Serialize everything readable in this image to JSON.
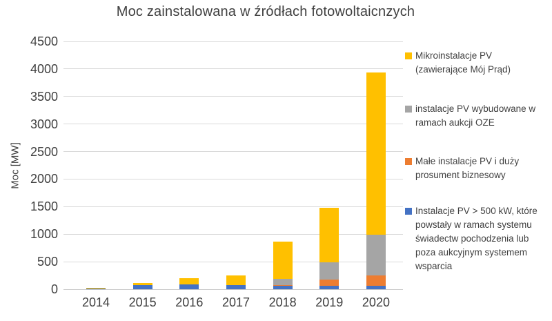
{
  "chart_data": {
    "type": "bar",
    "stacked": true,
    "title": "Moc zainstalowana w źródłach fotowoltaicnzych",
    "xlabel": "",
    "ylabel": "Moc [MW]",
    "categories": [
      "2014",
      "2015",
      "2016",
      "2017",
      "2018",
      "2019",
      "2020"
    ],
    "series": [
      {
        "name": "Instalacje PV > 500 kW, które powstały w ramach systemu świadectw pochodzenia lub poza aukcyjnym systemem wsparcia",
        "color": "#4472C4",
        "values": [
          10,
          75,
          85,
          80,
          60,
          60,
          60
        ]
      },
      {
        "name": "Małe instalacje PV i duży prosument biznesowy",
        "color": "#ED7D31",
        "values": [
          0,
          0,
          0,
          0,
          15,
          110,
          195
        ]
      },
      {
        "name": "instalacje PV wybudowane w ramach aukcji OZE",
        "color": "#A5A5A5",
        "values": [
          0,
          0,
          0,
          0,
          115,
          320,
          730
        ]
      },
      {
        "name": "Mikroinstalacje PV (zawierające Mój Prąd)",
        "color": "#FFC000",
        "values": [
          15,
          35,
          115,
          175,
          670,
          990,
          2955
        ]
      }
    ],
    "totals": [
      25,
      110,
      200,
      255,
      860,
      1480,
      3940
    ],
    "ylim": [
      0,
      4500
    ],
    "ytick_step": 500,
    "yticks": [
      0,
      500,
      1000,
      1500,
      2000,
      2500,
      3000,
      3500,
      4000,
      4500
    ],
    "grid": true,
    "legend_position": "right"
  },
  "legend": [
    {
      "color": "#FFC000",
      "text": "Mikroinstalacje PV\n(zawierające Mój Prąd)"
    },
    {
      "color": "#A5A5A5",
      "text": "instalacje PV wybudowane w\nramach aukcji OZE"
    },
    {
      "color": "#ED7D31",
      "text": "Małe instalacje PV i duży\nprosument biznesowy"
    },
    {
      "color": "#4472C4",
      "text": "Instalacje PV > 500 kW, które\npowstały w ramach systemu\nświadectw pochodzenia lub\npoza aukcyjnym systemem\nwsparcia"
    }
  ],
  "colors": {
    "text": "#404040",
    "grid": "#D9D9D9",
    "background": "#FFFFFF"
  }
}
